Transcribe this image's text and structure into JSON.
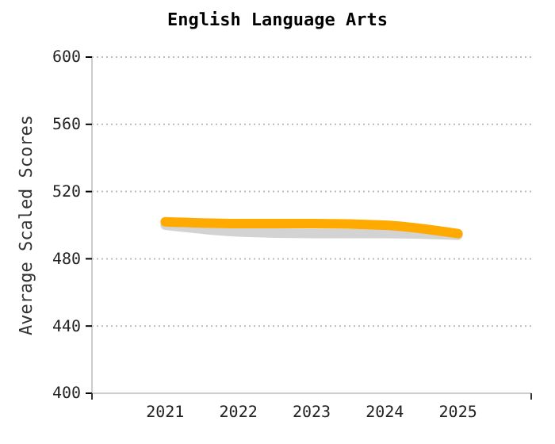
{
  "chart_data": {
    "type": "line",
    "title": "English Language Arts",
    "ylabel": "Average Scaled Scores",
    "categories": [
      "2021",
      "2022",
      "2023",
      "2024",
      "2025"
    ],
    "series": [
      {
        "color": "#d3d3d3",
        "values": [
          500,
          496,
          495,
          495,
          494
        ]
      },
      {
        "color": "#ffaa00",
        "values": [
          502,
          501,
          501,
          500,
          495
        ]
      }
    ],
    "ylim": [
      400,
      600
    ],
    "yticks": [
      400,
      440,
      480,
      520,
      560,
      600
    ],
    "grid": "y",
    "marker": "none",
    "line_style": "solid"
  }
}
